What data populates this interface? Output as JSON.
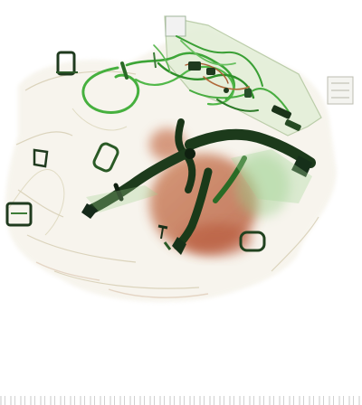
{
  "image": {
    "kind": "x-ray baggage scan",
    "palette": {
      "background": "#ffffff",
      "organic": "#c0603a",
      "organic_light": "#d9a07a",
      "inorganic": "#3aa636",
      "inorganic_light": "#8fd08a",
      "metal_dense": "#1f3a1e",
      "metal_dark": "#0f2010",
      "bag_outline": "#c9c1a6"
    },
    "objects": [
      {
        "name": "bag",
        "material": "fabric"
      },
      {
        "name": "pliers",
        "material": "metal"
      },
      {
        "name": "cables",
        "material": "inorganic"
      },
      {
        "name": "buckles",
        "material": "metal"
      },
      {
        "name": "organic-mass",
        "material": "organic"
      }
    ]
  }
}
